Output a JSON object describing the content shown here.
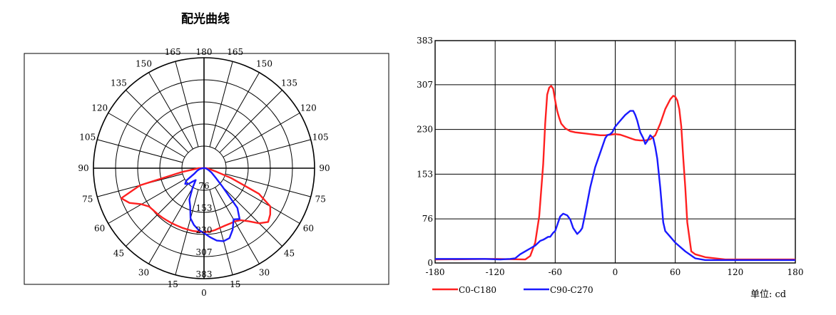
{
  "polar_title": "配光曲线",
  "unit_label": "单位: cd",
  "colors": {
    "c0": "#ff2020",
    "c90": "#1a1aff",
    "axis": "#000000",
    "grid": "#000000"
  },
  "chart_data": [
    {
      "type": "polar",
      "title": "配光曲线",
      "angle_labels": {
        "left": [
          "165",
          "150",
          "135",
          "120",
          "105",
          "90",
          "75",
          "60",
          "45",
          "30",
          "15"
        ],
        "right": [
          "165",
          "150",
          "135",
          "120",
          "105",
          "90",
          "75",
          "60",
          "45",
          "30",
          "15"
        ],
        "top": "180",
        "bottom": "0"
      },
      "radial_ticks": [
        "76",
        "153",
        "230",
        "307",
        "383"
      ],
      "rmax": 383,
      "series": [
        {
          "name": "C0-C180",
          "color": "#ff2020",
          "angles": [
            -90,
            -85,
            -80,
            -75,
            -70,
            -65,
            -60,
            -55,
            -50,
            -45,
            -40,
            -35,
            -30,
            -25,
            -20,
            -15,
            -10,
            -5,
            0,
            5,
            10,
            15,
            20,
            25,
            30,
            35,
            40,
            45,
            50,
            55,
            60,
            65,
            70,
            75,
            80,
            85,
            90
          ],
          "values": [
            20,
            30,
            80,
            230,
            305,
            285,
            250,
            232,
            228,
            226,
            224,
            222,
            221,
            220,
            220,
            220,
            221,
            221,
            222,
            221,
            218,
            214,
            212,
            212,
            213,
            220,
            240,
            270,
            290,
            280,
            265,
            210,
            100,
            40,
            20,
            12,
            10
          ]
        },
        {
          "name": "C90-C270",
          "color": "#1a1aff",
          "angles": [
            -90,
            -80,
            -70,
            -60,
            -55,
            -50,
            -45,
            -40,
            -35,
            -30,
            -25,
            -20,
            -15,
            -10,
            -5,
            0,
            5,
            10,
            15,
            20,
            25,
            30,
            35,
            40,
            45,
            50,
            60,
            70,
            80,
            90
          ],
          "values": [
            5,
            15,
            25,
            40,
            75,
            85,
            78,
            60,
            50,
            80,
            120,
            140,
            180,
            200,
            215,
            225,
            240,
            255,
            262,
            258,
            235,
            205,
            215,
            180,
            90,
            55,
            30,
            15,
            8,
            5
          ]
        }
      ]
    },
    {
      "type": "line",
      "xlim": [
        -180,
        180
      ],
      "ylim": [
        0,
        383
      ],
      "xticks": [
        "-180",
        "-120",
        "-60",
        "0",
        "60",
        "120",
        "180"
      ],
      "yticks": [
        "0",
        "76",
        "153",
        "230",
        "307",
        "383"
      ],
      "grid": true,
      "legend": "bottom-left",
      "series": [
        {
          "name": "C0-C180",
          "color": "#ff2020",
          "x": [
            -180,
            -120,
            -90,
            -85,
            -80,
            -76,
            -72,
            -70,
            -68,
            -66,
            -64,
            -62,
            -60,
            -58,
            -56,
            -54,
            -50,
            -45,
            -40,
            -35,
            -30,
            -25,
            -20,
            -15,
            -10,
            -5,
            0,
            5,
            10,
            15,
            20,
            25,
            30,
            35,
            40,
            45,
            50,
            55,
            58,
            60,
            62,
            64,
            66,
            68,
            70,
            72,
            76,
            80,
            90,
            110,
            180
          ],
          "y": [
            6,
            7,
            6,
            12,
            35,
            80,
            170,
            240,
            290,
            302,
            305,
            300,
            280,
            262,
            250,
            240,
            232,
            227,
            225,
            224,
            223,
            222,
            221,
            220,
            220,
            221,
            222,
            221,
            218,
            215,
            212,
            211,
            211,
            213,
            220,
            240,
            265,
            282,
            288,
            286,
            280,
            265,
            235,
            180,
            130,
            70,
            20,
            15,
            10,
            6,
            6
          ]
        },
        {
          "name": "C90-C270",
          "color": "#1a1aff",
          "x": [
            -180,
            -130,
            -115,
            -105,
            -100,
            -95,
            -90,
            -85,
            -80,
            -75,
            -72,
            -70,
            -67,
            -65,
            -62,
            -60,
            -58,
            -55,
            -52,
            -48,
            -45,
            -42,
            -40,
            -38,
            -35,
            -33,
            -30,
            -25,
            -20,
            -15,
            -10,
            -8,
            -5,
            -3,
            0,
            5,
            10,
            15,
            18,
            20,
            22,
            25,
            28,
            30,
            32,
            35,
            38,
            40,
            42,
            45,
            48,
            50,
            55,
            60,
            70,
            80,
            90,
            110,
            130,
            180
          ],
          "y": [
            7,
            7,
            6,
            7,
            8,
            15,
            20,
            25,
            30,
            38,
            40,
            42,
            45,
            45,
            52,
            55,
            65,
            80,
            85,
            82,
            75,
            60,
            55,
            50,
            55,
            60,
            85,
            130,
            165,
            190,
            215,
            220,
            222,
            225,
            235,
            245,
            255,
            262,
            262,
            255,
            245,
            225,
            215,
            205,
            210,
            220,
            215,
            200,
            180,
            130,
            70,
            55,
            45,
            35,
            20,
            8,
            5,
            5,
            5,
            5
          ]
        }
      ]
    }
  ]
}
